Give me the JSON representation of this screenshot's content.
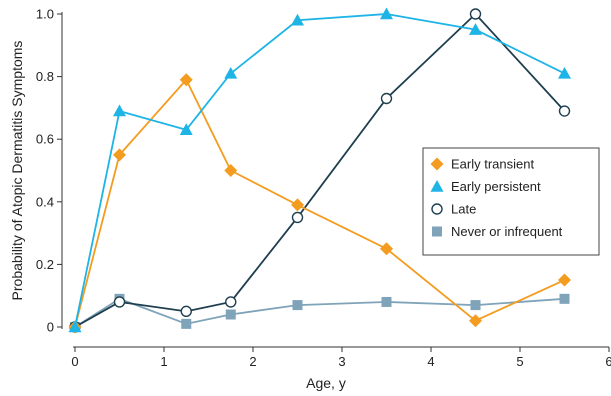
{
  "chart_data": {
    "type": "line",
    "xlabel": "Age, y",
    "ylabel": "Probability of Atopic Dermatitis Symptoms",
    "xlim": [
      0,
      6
    ],
    "ylim": [
      0,
      1.0
    ],
    "xticks": [
      0,
      1,
      2,
      3,
      4,
      5,
      6
    ],
    "yticks": [
      0,
      0.2,
      0.4,
      0.6,
      0.8,
      1.0
    ],
    "xtick_labels": [
      "0",
      "1",
      "2",
      "3",
      "4",
      "5",
      "6"
    ],
    "ytick_labels": [
      "0",
      "0.2",
      "0.4",
      "0.6",
      "0.8",
      "1.0"
    ],
    "grid": false,
    "legend_position": "right",
    "series": [
      {
        "name": "Early transient",
        "color": "#f39c1f",
        "marker": "diamond",
        "x": [
          0,
          0.5,
          1.25,
          1.75,
          2.5,
          3.5,
          4.5,
          5.5
        ],
        "y": [
          0.0,
          0.55,
          0.79,
          0.5,
          0.39,
          0.25,
          0.02,
          0.15
        ]
      },
      {
        "name": "Early persistent",
        "color": "#1eb4e6",
        "marker": "triangle",
        "x": [
          0,
          0.5,
          1.25,
          1.75,
          2.5,
          3.5,
          4.5,
          5.5
        ],
        "y": [
          0.0,
          0.69,
          0.63,
          0.81,
          0.98,
          1.0,
          0.95,
          0.81
        ]
      },
      {
        "name": "Late",
        "color": "#1f3f4f",
        "marker": "circle-open",
        "x": [
          0,
          0.5,
          1.25,
          1.75,
          2.5,
          3.5,
          4.5,
          5.5
        ],
        "y": [
          0.0,
          0.08,
          0.05,
          0.08,
          0.35,
          0.73,
          1.0,
          0.69
        ]
      },
      {
        "name": "Never or infrequent",
        "color": "#7fa3b8",
        "marker": "square",
        "x": [
          0,
          0.5,
          1.25,
          1.75,
          2.5,
          3.5,
          4.5,
          5.5
        ],
        "y": [
          0.0,
          0.09,
          0.01,
          0.04,
          0.07,
          0.08,
          0.07,
          0.09
        ]
      }
    ]
  }
}
